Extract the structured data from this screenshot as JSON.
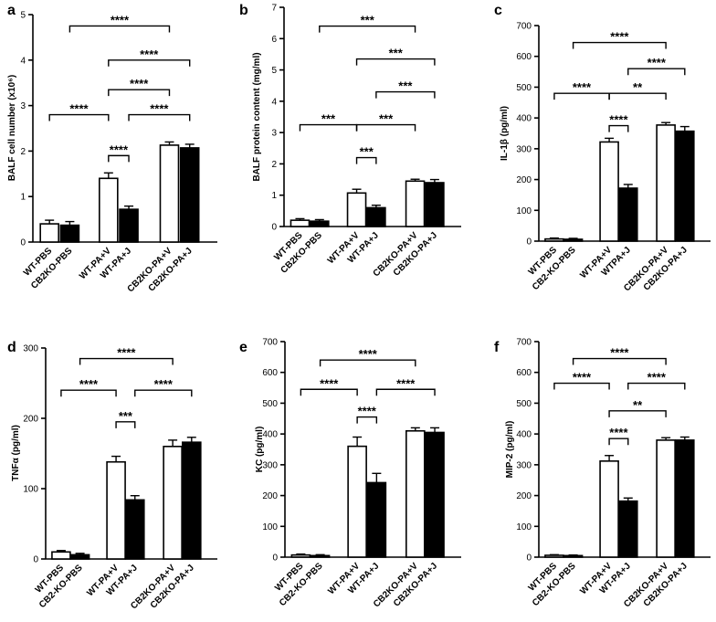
{
  "chart_data": [
    {
      "panel": "a",
      "type": "bar",
      "categories": [
        "WT-PBS",
        "CB2KO-PBS",
        "WT-PA+V",
        "WT-PA+J",
        "CB2KO-PA+V",
        "CB2KO-PA+J"
      ],
      "values": [
        0.4,
        0.37,
        1.4,
        0.72,
        2.13,
        2.07
      ],
      "errors": [
        0.08,
        0.08,
        0.12,
        0.07,
        0.07,
        0.08
      ],
      "fills": [
        "#ffffff",
        "#000000",
        "#ffffff",
        "#000000",
        "#ffffff",
        "#000000"
      ],
      "ylabel": "BALF cell number (x10⁶)",
      "ylim": [
        0,
        5
      ],
      "yticks": [
        "0",
        "1",
        "2",
        "3",
        "4",
        "5"
      ],
      "comparisons": [
        {
          "from": 0,
          "to": 2,
          "y": 2.8,
          "label": "****"
        },
        {
          "from": 2,
          "to": 3,
          "y": 1.9,
          "label": "****"
        },
        {
          "from": 2,
          "to": 4,
          "y": 3.35,
          "label": "****"
        },
        {
          "from": 3,
          "to": 5,
          "y": 2.8,
          "label": "****"
        },
        {
          "from": 2,
          "to": 5,
          "y": 4.0,
          "label": "****"
        },
        {
          "from": 1,
          "to": 4,
          "y": 4.75,
          "label": "****"
        }
      ]
    },
    {
      "panel": "b",
      "type": "bar",
      "categories": [
        "WT-PBS",
        "CB2KO-PBS",
        "WT-PA+V",
        "WT-PA+J",
        "CB2KO-PA+V",
        "CB2KO-PA+J"
      ],
      "values": [
        0.2,
        0.17,
        1.07,
        0.6,
        1.45,
        1.4
      ],
      "errors": [
        0.05,
        0.05,
        0.12,
        0.08,
        0.06,
        0.1
      ],
      "fills": [
        "#ffffff",
        "#000000",
        "#ffffff",
        "#000000",
        "#ffffff",
        "#000000"
      ],
      "ylabel": "BALF protein content (mg/ml)",
      "ylim": [
        0,
        7
      ],
      "yticks": [
        "0",
        "1",
        "2",
        "3",
        "4",
        "5",
        "6",
        "7"
      ],
      "comparisons": [
        {
          "from": 0,
          "to": 2,
          "y": 3.25,
          "label": "***"
        },
        {
          "from": 2,
          "to": 3,
          "y": 2.2,
          "label": "***"
        },
        {
          "from": 2,
          "to": 4,
          "y": 3.25,
          "label": "***"
        },
        {
          "from": 3,
          "to": 5,
          "y": 4.3,
          "label": "***"
        },
        {
          "from": 2,
          "to": 5,
          "y": 5.35,
          "label": "***"
        },
        {
          "from": 1,
          "to": 4,
          "y": 6.4,
          "label": "***"
        }
      ]
    },
    {
      "panel": "c",
      "type": "bar",
      "categories": [
        "WT-PBS",
        "CB2-KO-PBS",
        "WT-PA+V",
        "WTPA+J",
        "CB2KO-PA+V",
        "CB2KO-PA+J"
      ],
      "values": [
        7,
        6,
        322,
        172,
        377,
        357
      ],
      "errors": [
        3,
        3,
        12,
        12,
        8,
        15
      ],
      "fills": [
        "#ffffff",
        "#000000",
        "#ffffff",
        "#000000",
        "#ffffff",
        "#000000"
      ],
      "ylabel": "IL-1β (pg/ml)",
      "ylim": [
        0,
        700
      ],
      "yticks": [
        "0",
        "100",
        "200",
        "300",
        "400",
        "500",
        "600",
        "700"
      ],
      "comparisons": [
        {
          "from": 0,
          "to": 2,
          "y": 480,
          "label": "****"
        },
        {
          "from": 2,
          "to": 3,
          "y": 375,
          "label": "****"
        },
        {
          "from": 2,
          "to": 4,
          "y": 480,
          "label": "**"
        },
        {
          "from": 3,
          "to": 5,
          "y": 560,
          "label": "****"
        },
        {
          "from": 1,
          "to": 4,
          "y": 645,
          "label": "****"
        }
      ]
    },
    {
      "panel": "d",
      "type": "bar",
      "categories": [
        "WT-PBS",
        "CB2-KO-PBS",
        "WT-PA+V",
        "WT-PA+J",
        "CB2KO-PA+V",
        "CB2KO-PA+J"
      ],
      "values": [
        10,
        6,
        138,
        84,
        160,
        166
      ],
      "errors": [
        2,
        2,
        8,
        6,
        9,
        7
      ],
      "fills": [
        "#ffffff",
        "#000000",
        "#ffffff",
        "#000000",
        "#ffffff",
        "#000000"
      ],
      "ylabel": "TNFα (pg/ml)",
      "ylim": [
        0,
        300
      ],
      "yticks": [
        "0",
        "100",
        "200",
        "300"
      ],
      "comparisons": [
        {
          "from": 0,
          "to": 2,
          "y": 240,
          "label": "****"
        },
        {
          "from": 2,
          "to": 3,
          "y": 195,
          "label": "***"
        },
        {
          "from": 3,
          "to": 5,
          "y": 240,
          "label": "****"
        },
        {
          "from": 1,
          "to": 4,
          "y": 285,
          "label": "****"
        }
      ]
    },
    {
      "panel": "e",
      "type": "bar",
      "categories": [
        "WT-PBS",
        "CB2-KO-PBS",
        "WT-PA+V",
        "WT-PA+J",
        "CB2KO-PA+V",
        "CB2KO-PA+J"
      ],
      "values": [
        7,
        5,
        360,
        242,
        410,
        405
      ],
      "errors": [
        3,
        3,
        30,
        30,
        10,
        15
      ],
      "fills": [
        "#ffffff",
        "#000000",
        "#ffffff",
        "#000000",
        "#ffffff",
        "#000000"
      ],
      "ylabel": "KC (pg/ml)",
      "ylim": [
        0,
        700
      ],
      "yticks": [
        "0",
        "100",
        "200",
        "300",
        "400",
        "500",
        "600",
        "700"
      ],
      "comparisons": [
        {
          "from": 0,
          "to": 2,
          "y": 545,
          "label": "****"
        },
        {
          "from": 2,
          "to": 3,
          "y": 455,
          "label": "****"
        },
        {
          "from": 3,
          "to": 5,
          "y": 545,
          "label": "****"
        },
        {
          "from": 1,
          "to": 4,
          "y": 640,
          "label": "****"
        }
      ]
    },
    {
      "panel": "f",
      "type": "bar",
      "categories": [
        "WT-PBS",
        "CB2-KO-PBS",
        "WT-PA+V",
        "WT-PA+J",
        "CB2KO-PA+V",
        "CB2KO-PA+J"
      ],
      "values": [
        6,
        5,
        312,
        182,
        380,
        380
      ],
      "errors": [
        2,
        2,
        18,
        10,
        8,
        10
      ],
      "fills": [
        "#ffffff",
        "#000000",
        "#ffffff",
        "#000000",
        "#ffffff",
        "#000000"
      ],
      "ylabel": "MIP-2 (pg/ml)",
      "ylim": [
        0,
        700
      ],
      "yticks": [
        "0",
        "100",
        "200",
        "300",
        "400",
        "500",
        "600",
        "700"
      ],
      "comparisons": [
        {
          "from": 0,
          "to": 2,
          "y": 565,
          "label": "****"
        },
        {
          "from": 2,
          "to": 3,
          "y": 385,
          "label": "****"
        },
        {
          "from": 2,
          "to": 4,
          "y": 475,
          "label": "**"
        },
        {
          "from": 3,
          "to": 5,
          "y": 565,
          "label": "****"
        },
        {
          "from": 1,
          "to": 4,
          "y": 645,
          "label": "****"
        }
      ]
    }
  ]
}
